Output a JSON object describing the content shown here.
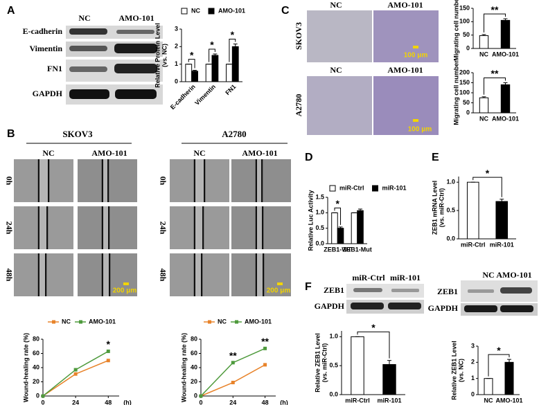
{
  "figure": {
    "panel_letters": [
      "A",
      "B",
      "C",
      "D",
      "E",
      "F"
    ],
    "A": {
      "lanes": [
        "NC",
        "AMO-101"
      ],
      "rows": [
        "E-cadherin",
        "Vimentin",
        "FN1",
        "GAPDH"
      ]
    },
    "B": {
      "cells": [
        "SKOV3",
        "A2780"
      ],
      "lanes": [
        "NC",
        "AMO-101"
      ],
      "times": [
        "0h",
        "24h",
        "48h"
      ],
      "scale": "200 μm"
    },
    "C": {
      "cells": [
        "SKOV3",
        "A2780"
      ],
      "lanes": [
        "NC",
        "AMO-101"
      ],
      "scale": "100 μm"
    },
    "F": {
      "left_lanes": [
        "miR-Ctrl",
        "miR-101"
      ],
      "right_lanes": [
        "NC",
        "AMO-101"
      ],
      "rows": [
        "ZEB1",
        "GAPDH"
      ]
    }
  },
  "chart_data": [
    {
      "type": "bar",
      "ylabel": [
        "Relative Protein Level",
        "(vs. NC)"
      ],
      "categories": [
        "E-cadherin",
        "Vimentin",
        "FN1"
      ],
      "series": [
        {
          "name": "NC",
          "color": "#ffffff",
          "values": [
            1,
            1,
            1
          ],
          "errors": [
            0,
            0,
            0
          ]
        },
        {
          "name": "AMO-101",
          "color": "#000000",
          "values": [
            0.6,
            1.5,
            2.0
          ],
          "errors": [
            0.05,
            0.08,
            0.15
          ]
        }
      ],
      "ylim": [
        0,
        3
      ],
      "yticks": [
        0,
        1,
        2,
        3
      ],
      "legend": "top",
      "annotations": [
        "*",
        "*",
        "*"
      ]
    },
    {
      "type": "bar",
      "ylabel": "Migrating cell number",
      "categories": [
        "NC",
        "AMO-101"
      ],
      "values": [
        48,
        105
      ],
      "errors": [
        4,
        6
      ],
      "colors": [
        "#ffffff",
        "#000000"
      ],
      "ylim": [
        0,
        150
      ],
      "yticks": [
        0,
        50,
        100,
        150
      ],
      "annotations": [
        "**"
      ]
    },
    {
      "type": "bar",
      "ylabel": "Migrating cell number",
      "categories": [
        "NC",
        "AMO-101"
      ],
      "values": [
        75,
        140
      ],
      "errors": [
        5,
        10
      ],
      "colors": [
        "#ffffff",
        "#000000"
      ],
      "ylim": [
        0,
        200
      ],
      "yticks": [
        0,
        50,
        100,
        150,
        200
      ],
      "annotations": [
        "**"
      ]
    },
    {
      "type": "line",
      "ylabel": "Wound-healing rate (%)",
      "xlabel": "(h)",
      "x": [
        0,
        24,
        48
      ],
      "xlim": [
        0,
        56
      ],
      "xticks": [
        0,
        24,
        48
      ],
      "series": [
        {
          "name": "NC",
          "color": "#e8832a",
          "values": [
            0,
            31,
            50
          ]
        },
        {
          "name": "AMO-101",
          "color": "#4e9a3c",
          "values": [
            0,
            37,
            63
          ]
        }
      ],
      "ylim": [
        0,
        80
      ],
      "yticks": [
        0,
        20,
        40,
        60,
        80
      ],
      "legend": "top",
      "annotations": [
        null,
        null,
        "*"
      ]
    },
    {
      "type": "line",
      "ylabel": "Wound-healing rate (%)",
      "xlabel": "(h)",
      "x": [
        0,
        24,
        48
      ],
      "xlim": [
        0,
        56
      ],
      "xticks": [
        0,
        24,
        48
      ],
      "series": [
        {
          "name": "NC",
          "color": "#e8832a",
          "values": [
            0,
            19,
            44
          ]
        },
        {
          "name": "AMO-101",
          "color": "#4e9a3c",
          "values": [
            0,
            47,
            67
          ]
        }
      ],
      "ylim": [
        0,
        80
      ],
      "yticks": [
        0,
        20,
        40,
        60,
        80
      ],
      "legend": "top",
      "annotations": [
        null,
        "**",
        "**"
      ]
    },
    {
      "type": "bar",
      "ylabel": "Relative Luc Activity",
      "categories": [
        "ZEB1-WT",
        "ZEB1-Mut"
      ],
      "series": [
        {
          "name": "miR-Ctrl",
          "color": "#ffffff",
          "values": [
            1,
            1
          ],
          "errors": [
            0,
            0
          ]
        },
        {
          "name": "miR-101",
          "color": "#000000",
          "values": [
            0.5,
            1.07
          ],
          "errors": [
            0.04,
            0.05
          ]
        }
      ],
      "ylim": [
        0,
        1.5
      ],
      "yticks": [
        {
          "value": 0,
          "label": "0.0"
        },
        0.5,
        {
          "value": 1,
          "label": "1.0"
        },
        1.5
      ],
      "legend": "top",
      "annotations": [
        "*",
        null
      ]
    },
    {
      "type": "bar",
      "ylabel": [
        "ZEB1 mRNA Level",
        "(vs. miR-Ctrl)"
      ],
      "categories": [
        "miR-Ctrl",
        "miR-101"
      ],
      "values": [
        1,
        0.66
      ],
      "errors": [
        0,
        0.04
      ],
      "colors": [
        "#ffffff",
        "#000000"
      ],
      "ylim": [
        0,
        1.1
      ],
      "yticks": [
        {
          "value": 0,
          "label": "0.0"
        },
        0.5,
        {
          "value": 1,
          "label": "1.0"
        }
      ],
      "annotations": [
        "*"
      ]
    },
    {
      "type": "bar",
      "ylabel": [
        "Relative ZEB1 Level",
        "(vs. miR-Ctrl)"
      ],
      "categories": [
        "miR-Ctrl",
        "miR-101"
      ],
      "values": [
        1,
        0.52
      ],
      "errors": [
        0,
        0.07
      ],
      "colors": [
        "#ffffff",
        "#000000"
      ],
      "ylim": [
        0,
        1.1
      ],
      "yticks": [
        {
          "value": 0,
          "label": "0.0"
        },
        0.5,
        {
          "value": 1,
          "label": "1.0"
        }
      ],
      "annotations": [
        "*"
      ]
    },
    {
      "type": "bar",
      "ylabel": [
        "Relative ZEB1 Level",
        "(vs. NC)"
      ],
      "categories": [
        "NC",
        "AMO-101"
      ],
      "values": [
        1,
        2.0
      ],
      "errors": [
        0,
        0.18
      ],
      "colors": [
        "#ffffff",
        "#000000"
      ],
      "ylim": [
        0,
        3
      ],
      "yticks": [
        0,
        1,
        2,
        3
      ],
      "annotations": [
        "*"
      ]
    }
  ]
}
